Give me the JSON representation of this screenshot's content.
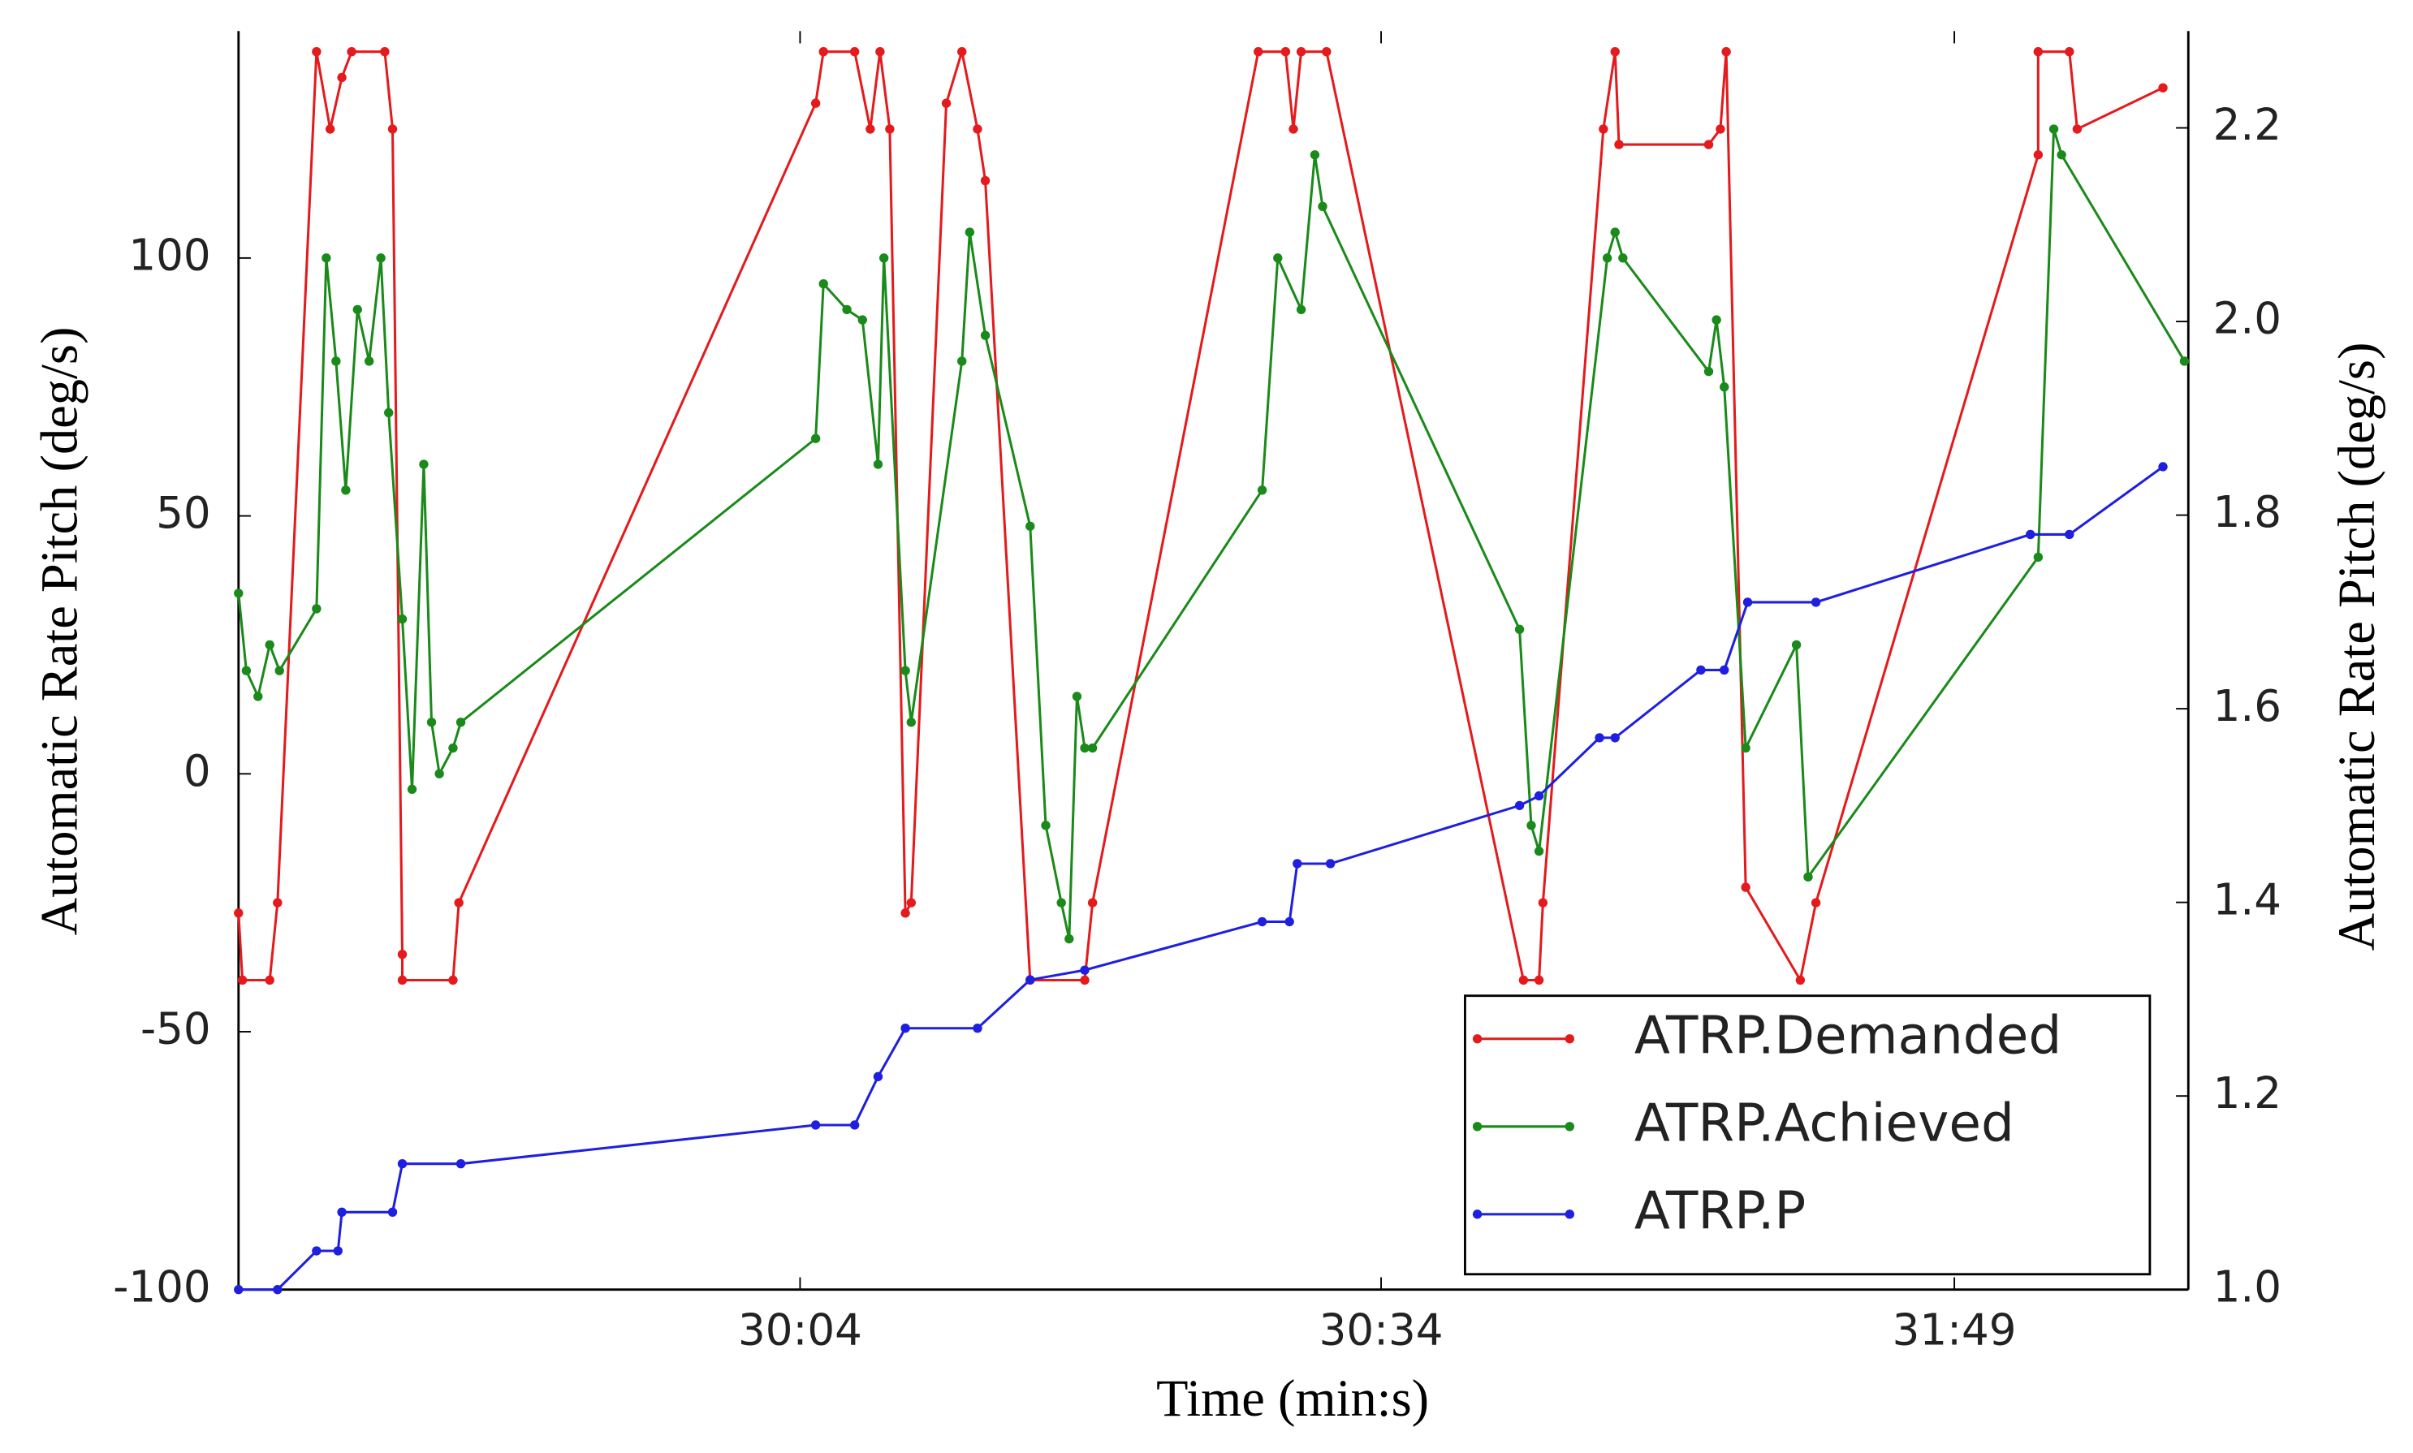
{
  "chart_data": {
    "type": "line",
    "xlabel": "Time (min:s)",
    "ylabel": "Automatic Rate Pitch (deg/s)",
    "y2label": "Automatic Rate Pitch (deg/s)",
    "xlim": [
      0,
      100
    ],
    "xticks": [
      {
        "value": 28.8,
        "label": "30:04"
      },
      {
        "value": 58.6,
        "label": "30:34"
      },
      {
        "value": 88.0,
        "label": "31:49"
      }
    ],
    "ylim": [
      -100,
      144
    ],
    "yticks": [
      -100,
      -50,
      0,
      50,
      100
    ],
    "y2lim": [
      1.0,
      2.3
    ],
    "y2ticks": [
      {
        "value": 1,
        "label": "1.0"
      },
      1.2,
      1.4,
      1.6,
      1.8,
      {
        "value": 2,
        "label": "2.0"
      },
      2.2
    ],
    "legend": "lower right",
    "series": [
      {
        "name": "ATRP.Demanded",
        "color": "#e41a1c",
        "x": [
          0,
          0.2,
          1.6,
          2.0,
          4.0,
          4.7,
          5.3,
          5.8,
          7.5,
          7.9,
          8.4,
          8.4,
          11.0,
          11.3,
          29.6,
          30.0,
          31.6,
          32.4,
          32.9,
          33.4,
          34.2,
          34.5,
          36.3,
          37.1,
          37.9,
          38.3,
          40.6,
          43.4,
          43.8,
          52.3,
          53.7,
          54.1,
          54.5,
          55.8,
          65.9,
          66.7,
          66.9,
          70.0,
          70.6,
          70.8,
          75.4,
          76.0,
          76.3,
          77.3,
          80.1,
          80.9,
          92.3,
          92.3,
          93.9,
          94.3,
          98.7
        ],
        "values": [
          -27,
          -40,
          -40,
          -25,
          140,
          125,
          135,
          140,
          140,
          125,
          -35,
          -40,
          -40,
          -25,
          130,
          140,
          140,
          125,
          140,
          125,
          -27,
          -25,
          130,
          140,
          125,
          115,
          -40,
          -40,
          -25,
          140,
          140,
          125,
          140,
          140,
          -40,
          -40,
          -25,
          125,
          140,
          122,
          122,
          125,
          140,
          -22,
          -40,
          -25,
          120,
          140,
          140,
          125,
          133
        ]
      },
      {
        "name": "ATRP.Achieved",
        "color": "#1a8a1a",
        "x": [
          0,
          0.4,
          1.0,
          1.6,
          2.1,
          4.0,
          4.5,
          5.0,
          5.5,
          6.1,
          6.7,
          7.3,
          7.7,
          8.4,
          8.9,
          9.5,
          9.9,
          10.3,
          11.0,
          11.4,
          29.6,
          30.0,
          31.2,
          32.0,
          32.8,
          33.1,
          34.2,
          34.5,
          37.1,
          37.5,
          38.3,
          40.6,
          41.4,
          42.2,
          42.6,
          43.0,
          43.4,
          43.8,
          52.5,
          53.3,
          54.5,
          55.2,
          55.6,
          65.7,
          66.3,
          66.7,
          70.2,
          70.6,
          71.0,
          75.4,
          75.8,
          76.2,
          77.3,
          79.9,
          80.5,
          92.3,
          93.1,
          93.5,
          99.8
        ],
        "values": [
          35,
          20,
          15,
          25,
          20,
          32,
          100,
          80,
          55,
          90,
          80,
          100,
          70,
          30,
          -3,
          60,
          10,
          0,
          5,
          10,
          65,
          95,
          90,
          88,
          60,
          100,
          20,
          10,
          80,
          105,
          85,
          48,
          -10,
          -25,
          -32,
          15,
          5,
          5,
          55,
          100,
          90,
          120,
          110,
          28,
          -10,
          -15,
          100,
          105,
          100,
          78,
          88,
          75,
          5,
          25,
          -20,
          42,
          125,
          120,
          80
        ]
      },
      {
        "name": "ATRP.P",
        "color": "#1f1fe0",
        "axis": "y2",
        "x": [
          0,
          2.0,
          4.0,
          5.1,
          5.3,
          7.9,
          8.4,
          11.4,
          29.6,
          31.6,
          32.8,
          34.2,
          37.9,
          40.6,
          43.4,
          52.5,
          53.9,
          54.3,
          56.0,
          65.7,
          66.7,
          69.8,
          70.6,
          75.0,
          76.2,
          77.4,
          80.9,
          91.9,
          93.9,
          98.7
        ],
        "values": [
          1.0,
          1.0,
          1.04,
          1.04,
          1.08,
          1.08,
          1.13,
          1.13,
          1.17,
          1.17,
          1.22,
          1.27,
          1.27,
          1.32,
          1.33,
          1.38,
          1.38,
          1.44,
          1.44,
          1.5,
          1.51,
          1.57,
          1.57,
          1.64,
          1.64,
          1.71,
          1.71,
          1.78,
          1.78,
          1.85
        ]
      }
    ]
  }
}
